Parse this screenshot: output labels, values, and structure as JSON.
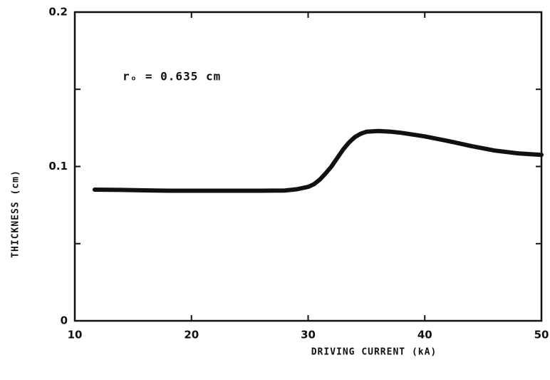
{
  "chart_data": {
    "type": "line",
    "xlabel": "DRIVING CURRENT (kA)",
    "ylabel": "THICKNESS (cm)",
    "annotation": "rₒ = 0.635 cm",
    "x": [
      11.7,
      14,
      16,
      18,
      20,
      22,
      24,
      26,
      28,
      29,
      30,
      30.5,
      31,
      31.5,
      32,
      32.5,
      33,
      33.5,
      34,
      34.5,
      35,
      36,
      37,
      38,
      40,
      42,
      44,
      46,
      48,
      50
    ],
    "values": [
      0.085,
      0.0848,
      0.0845,
      0.0843,
      0.0843,
      0.0843,
      0.0843,
      0.0843,
      0.0844,
      0.0852,
      0.0868,
      0.0885,
      0.0915,
      0.0955,
      0.1,
      0.1055,
      0.111,
      0.1155,
      0.119,
      0.1212,
      0.1225,
      0.123,
      0.1226,
      0.1218,
      0.1195,
      0.1165,
      0.1132,
      0.1103,
      0.1085,
      0.1075
    ],
    "color": "#111111",
    "xlim": [
      10,
      50
    ],
    "xticks": [
      10,
      20,
      30,
      40,
      50
    ],
    "ylim": [
      0,
      0.2
    ],
    "yticks": [
      0,
      0.1,
      0.2
    ],
    "yminor_ticks": [
      0.05,
      0.15
    ]
  }
}
